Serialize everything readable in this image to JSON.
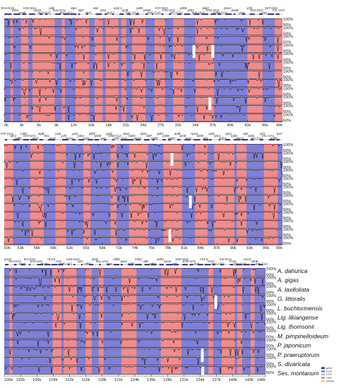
{
  "species": [
    "A. dahurica",
    "A. gigas",
    "A. laxifoliata",
    "G. littoralis",
    "L. buchtormensis",
    "Lig. likiangense",
    "Lig. thomsonii",
    "M. pimpinelloideum",
    "P. japonicum",
    "P. praeruptorum",
    "S. divaricata",
    "Ses. montanum"
  ],
  "percent_labels": [
    "100%",
    "50%"
  ],
  "panels": [
    {
      "axis_labels": [
        "0k",
        "3k",
        "6k",
        "9k",
        "12k",
        "15k",
        "18k",
        "21k",
        "24k",
        "27k",
        "31k",
        "34k",
        "37k",
        "40k",
        "43k",
        "46k",
        "49k"
      ],
      "gene_labels": [
        "trnH-GUG",
        "psbA",
        "matK",
        "trnK-UUU",
        "rps16",
        "trnQ-UUG",
        "psbI",
        "trnS-GCU",
        "trnG-UCC",
        "atpA",
        "atpF",
        "atpH",
        "atpI",
        "rps2",
        "rpoC2",
        "rpoC1",
        "rpoB",
        "trnC-GCA",
        "petN",
        "psbM",
        "trnD-GUC",
        "trnY-GUA",
        "trnE-UUC",
        "trnT-GGU",
        "psbD",
        "psbC",
        "trnS-UGA",
        "psbZ",
        "trnG-GCC",
        "trnfM-CAU",
        "rps14",
        "psaB",
        "psaA",
        "ycf3",
        "trnS-GGA",
        "rps4",
        "trnT-UGU",
        "trnL-UAA"
      ]
    },
    {
      "axis_labels": [
        "50k",
        "53k",
        "56k",
        "59k",
        "62k",
        "65k",
        "68k",
        "71k",
        "74k",
        "75k",
        "78k",
        "81k",
        "84k",
        "87k",
        "90k",
        "93k",
        "96k",
        "99k"
      ],
      "gene_labels": [
        "trnF-GAA",
        "ndhJ",
        "ndhK",
        "ndhC",
        "trnV-UAC",
        "atpE",
        "atpB",
        "rbcL",
        "accD",
        "psaI",
        "ycf4",
        "cemA",
        "petA",
        "psbJ",
        "psbL",
        "psbF",
        "psbE",
        "petL",
        "petG",
        "trnW-CCA",
        "trnP-UGG",
        "psaJ",
        "rpl33",
        "rps18",
        "rpl20",
        "clpP",
        "psbB",
        "psbT",
        "psbN",
        "psbH",
        "petB",
        "petD",
        "rpoA",
        "rps11",
        "rpl36",
        "infA",
        "rps8",
        "rpl14",
        "rpl16",
        "rps3",
        "rpl22",
        "rps19",
        "rpl2",
        "rpl23",
        "trnI-CAU",
        "ycf2",
        "trnL-CAA",
        "ndhB",
        "rps7"
      ]
    },
    {
      "axis_labels": [
        "100k",
        "102k",
        "106k",
        "109k",
        "112k",
        "115k",
        "118k",
        "121k",
        "124k",
        "126k",
        "128k",
        "131k",
        "134k",
        "137k",
        "140k",
        "143k",
        "146k"
      ],
      "gene_labels": [
        "rps12",
        "trnV-GAC",
        "rrn16",
        "trnI-GAU",
        "trnA-UGC",
        "rrn23",
        "rrn4.5",
        "rrn5",
        "trnR-ACG",
        "trnN-GUU",
        "ycf1",
        "ndhF",
        "rpl32",
        "trnL-UAG",
        "ccsA",
        "ndhD",
        "psaC",
        "ndhE",
        "ndhG",
        "ndhI",
        "ndhA",
        "ndhH",
        "rps15",
        "ycf1",
        "trnN-GUU",
        "trnR-ACG",
        "rrn5",
        "rrn4.5",
        "rrn23",
        "trnA-UGC",
        "trnI-GAU",
        "rrn16",
        "trnV-GAC",
        "rps12",
        "ndhB",
        "trnL-CAA"
      ]
    }
  ],
  "legend": [
    "gene",
    "exon",
    "UTR",
    "CNS",
    "mRNA"
  ],
  "colors": {
    "coding": "#7f7fd8",
    "noncoding": "#f28b8b",
    "white": "#ffffff",
    "profile": "#111111"
  }
}
